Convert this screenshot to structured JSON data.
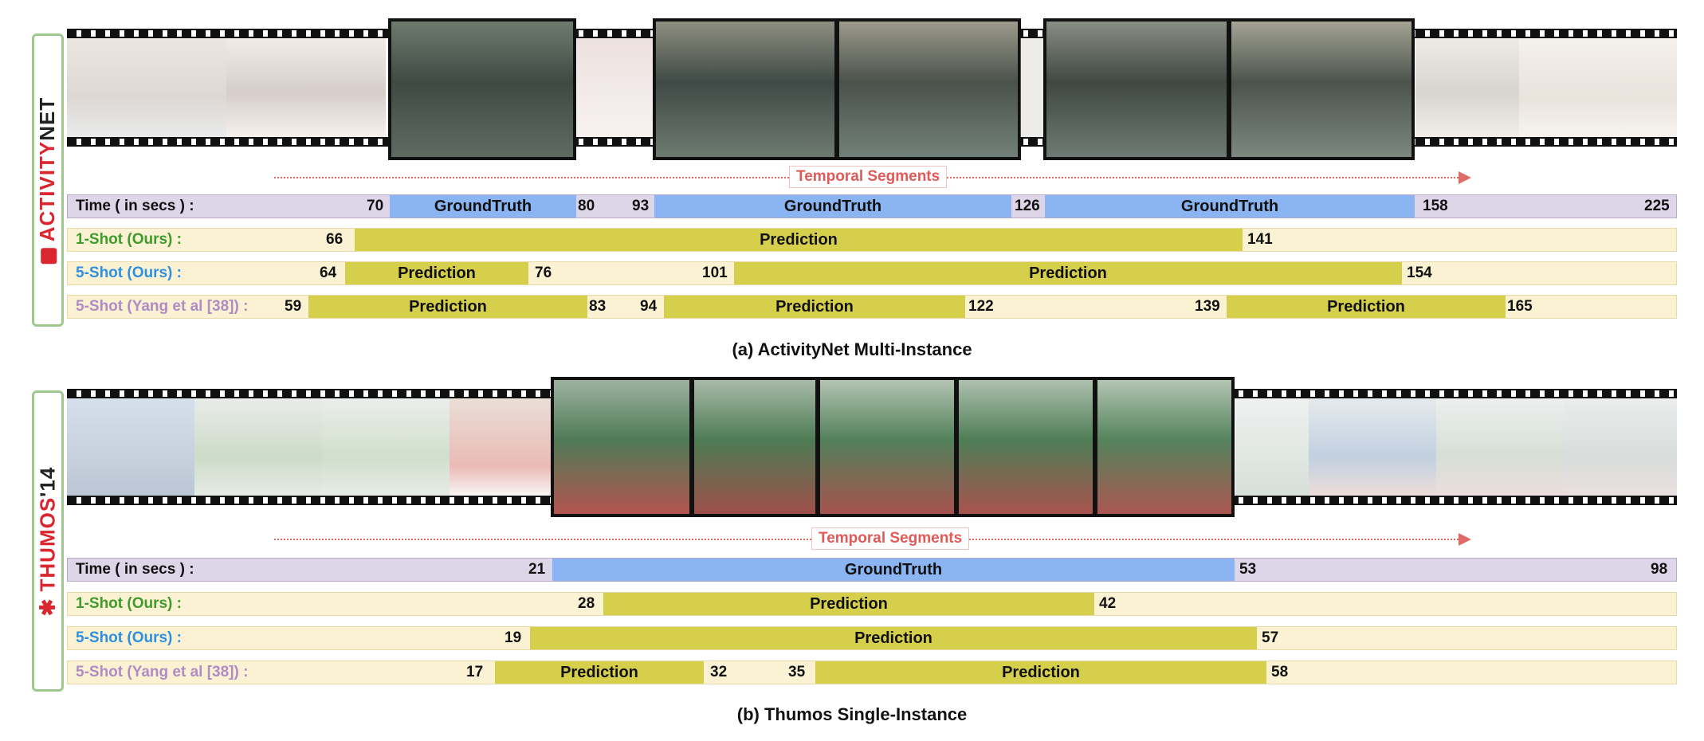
{
  "colors": {
    "groundtruth": "#8ab4f2",
    "prediction": "#d5cf4c",
    "time_row": "#ddd6e8",
    "pred_row": "#fbf2d3",
    "label_ours_1shot": "#3f9b2c",
    "label_ours_5shot": "#2f8fe0",
    "label_yang": "#b08bc4",
    "arrow": "#e06a68"
  },
  "panels": [
    {
      "side_label_red": "ACTIVITY",
      "side_label_black": "NET",
      "arrow_label": "Temporal Segments",
      "caption": "(a) ActivityNet Multi-Instance",
      "time_label": "Time ( in secs ) :",
      "gt_label": "GroundTruth",
      "pred_label": "Prediction",
      "time_end": "225",
      "gt_segments": [
        {
          "start": "70",
          "end": "80"
        },
        {
          "start": "93",
          "end": "126"
        },
        {
          "start": "",
          "end": "158"
        }
      ],
      "rows": [
        {
          "label": "1-Shot (Ours) :",
          "segments": [
            {
              "start": "66",
              "end": "141"
            }
          ]
        },
        {
          "label": "5-Shot (Ours) :",
          "segments": [
            {
              "start": "64",
              "end": "76"
            },
            {
              "start": "101",
              "end": "154"
            }
          ]
        },
        {
          "label": "5-Shot (Yang et al [38]) :",
          "segments": [
            {
              "start": "59",
              "end": "83"
            },
            {
              "start": "94",
              "end": "122"
            },
            {
              "start": "139",
              "end": "165"
            }
          ]
        }
      ]
    },
    {
      "side_label_red": "THUMOS",
      "side_label_black": "'14",
      "arrow_label": "Temporal Segments",
      "caption": "(b) Thumos Single-Instance",
      "time_label": "Time ( in secs ) :",
      "gt_label": "GroundTruth",
      "pred_label": "Prediction",
      "time_end": "98",
      "gt_segments": [
        {
          "start": "21",
          "end": "53"
        }
      ],
      "rows": [
        {
          "label": "1-Shot (Ours) :",
          "segments": [
            {
              "start": "28",
              "end": "42"
            }
          ]
        },
        {
          "label": "5-Shot (Ours) :",
          "segments": [
            {
              "start": "19",
              "end": "57"
            }
          ]
        },
        {
          "label": "5-Shot (Yang et al [38]) :",
          "segments": [
            {
              "start": "17",
              "end": "32"
            },
            {
              "start": "35",
              "end": "58"
            }
          ]
        }
      ]
    }
  ]
}
